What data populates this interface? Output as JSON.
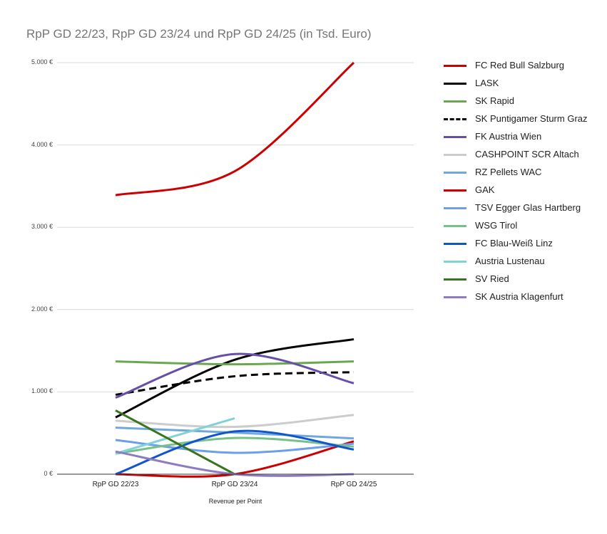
{
  "chart_data": {
    "type": "line",
    "title": "RpP GD 22/23, RpP GD 23/24 und RpP GD 24/25 (in Tsd. Euro)",
    "xlabel": "Revenue per Point",
    "ylabel": "",
    "categories": [
      "RpP GD 22/23",
      "RpP GD 23/24",
      "RpP GD 24/25"
    ],
    "yticks": [
      "0 €",
      "1.000 €",
      "2.000 €",
      "3.000 €",
      "4.000 €",
      "5.000 €"
    ],
    "ylim": [
      0,
      5000
    ],
    "grid": true,
    "legend_position": "right",
    "smooth": true,
    "series": [
      {
        "name": "FC Red Bull Salzburg",
        "color": "#cc0000",
        "dashed": false,
        "values": [
          3390,
          3680,
          5030
        ]
      },
      {
        "name": "LASK",
        "color": "#000000",
        "dashed": false,
        "values": [
          690,
          1390,
          1640
        ]
      },
      {
        "name": "SK Rapid",
        "color": "#6aa84f",
        "dashed": false,
        "values": [
          1370,
          1335,
          1370
        ]
      },
      {
        "name": "SK Puntigamer Sturm Graz",
        "color": "#000000",
        "dashed": true,
        "values": [
          965,
          1190,
          1240
        ]
      },
      {
        "name": "FK Austria Wien",
        "color": "#674ea7",
        "dashed": false,
        "values": [
          930,
          1460,
          1105
        ]
      },
      {
        "name": "CASHPOINT SCR Altach",
        "color": "#cccccc",
        "dashed": false,
        "values": [
          650,
          575,
          720
        ]
      },
      {
        "name": "RZ Pellets WAC",
        "color": "#6fa8dc",
        "dashed": false,
        "values": [
          565,
          505,
          435
        ]
      },
      {
        "name": "GAK",
        "color": "#cc0000",
        "dashed": false,
        "values": [
          0,
          0,
          400
        ]
      },
      {
        "name": "TSV Egger Glas Hartberg",
        "color": "#6d9eeb",
        "dashed": false,
        "values": [
          415,
          260,
          370
        ]
      },
      {
        "name": "WSG Tirol",
        "color": "#76c189",
        "dashed": false,
        "values": [
          250,
          440,
          335
        ]
      },
      {
        "name": "FC Blau-Weiß Linz",
        "color": "#1155cc",
        "dashed": false,
        "values": [
          0,
          520,
          300
        ]
      },
      {
        "name": "Austria Lustenau",
        "color": "#7fd3d8",
        "dashed": false,
        "values": [
          250,
          680,
          null
        ]
      },
      {
        "name": "SV Ried",
        "color": "#38761d",
        "dashed": false,
        "values": [
          775,
          0,
          null
        ]
      },
      {
        "name": "SK Austria Klagenfurt",
        "color": "#8e7cc3",
        "dashed": false,
        "values": [
          275,
          0,
          0
        ]
      }
    ]
  }
}
